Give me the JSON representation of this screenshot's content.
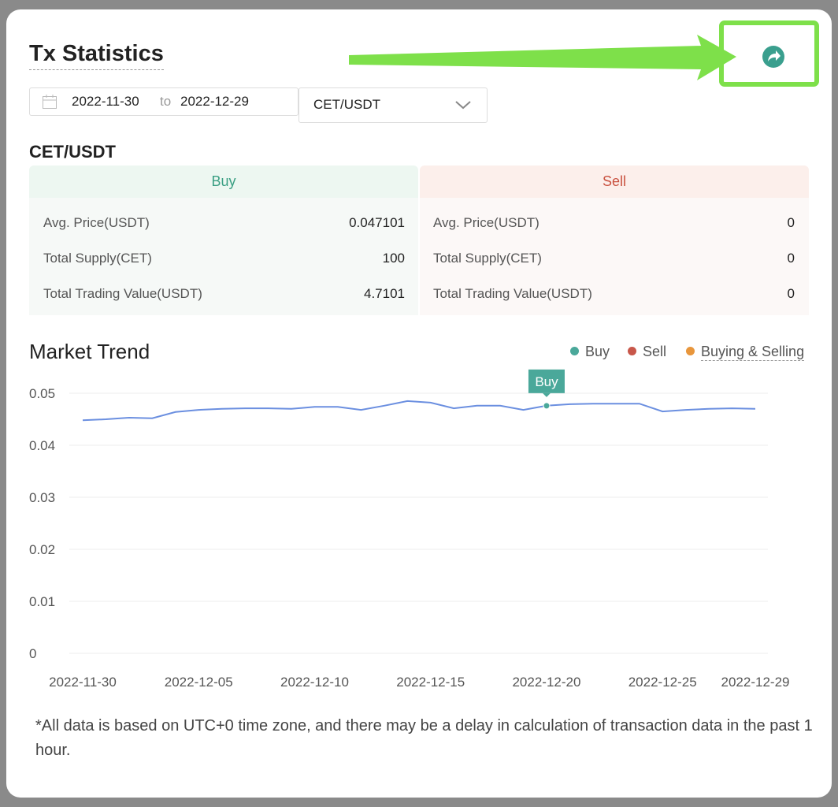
{
  "header": {
    "title": "Tx Statistics"
  },
  "filters": {
    "start_date": "2022-11-30",
    "to": "to",
    "end_date": "2022-12-29",
    "pair": "CET/USDT"
  },
  "pair_title": "CET/USDT",
  "buy": {
    "header": "Buy",
    "rows": [
      {
        "label": "Avg. Price(USDT)",
        "value": 0.047101
      },
      {
        "label": "Total Supply(CET)",
        "value": 100
      },
      {
        "label": "Total Trading Value(USDT)",
        "value": 4.7101
      }
    ]
  },
  "sell": {
    "header": "Sell",
    "rows": [
      {
        "label": "Avg. Price(USDT)",
        "value": 0
      },
      {
        "label": "Total Supply(CET)",
        "value": 0
      },
      {
        "label": "Total Trading Value(USDT)",
        "value": 0
      }
    ]
  },
  "market_trend": {
    "title": "Market Trend",
    "legend": [
      {
        "label": "Buy",
        "color": "#4aa89a"
      },
      {
        "label": "Sell",
        "color": "#c8574a"
      },
      {
        "label": "Buying & Selling",
        "color": "#e8963c"
      }
    ],
    "tooltip": "Buy",
    "chart": {
      "type": "line",
      "color": "#6b8fe0",
      "categories": [
        "2022-11-30",
        null,
        null,
        null,
        null,
        "2022-12-05",
        null,
        null,
        null,
        null,
        "2022-12-10",
        null,
        null,
        null,
        null,
        "2022-12-15",
        null,
        null,
        null,
        null,
        "2022-12-20",
        null,
        null,
        null,
        null,
        "2022-12-25",
        null,
        null,
        null,
        "2022-12-29"
      ],
      "values": [
        0.0448,
        0.045,
        0.0453,
        0.0452,
        0.0464,
        0.0468,
        0.047,
        0.0471,
        0.0471,
        0.047,
        0.0474,
        0.0474,
        0.0468,
        0.0476,
        0.0485,
        0.0482,
        0.0471,
        0.0476,
        0.0476,
        0.0468,
        0.0476,
        0.0479,
        0.048,
        0.048,
        0.048,
        0.0465,
        0.0468,
        0.047,
        0.0471,
        0.047
      ],
      "ylim": [
        0,
        0.05
      ],
      "yticks": [
        0,
        0.01,
        0.02,
        0.03,
        0.04,
        0.05
      ],
      "grid": true
    }
  },
  "footnote": "*All data is based on UTC+0 time zone, and there may be a delay in calculation of transaction data in the past 1 hour."
}
